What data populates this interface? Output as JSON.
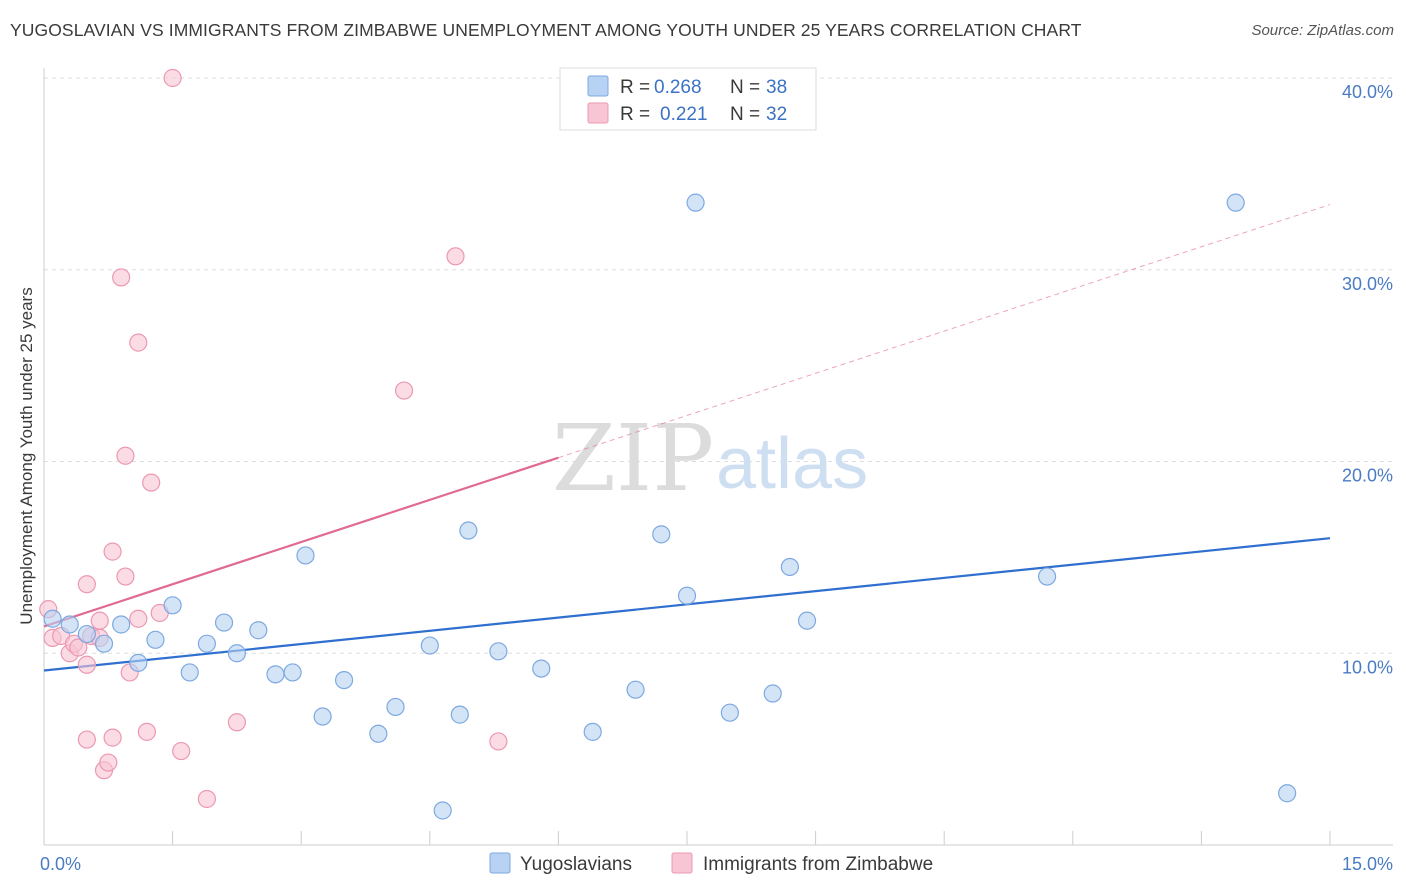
{
  "header": {
    "title": "YUGOSLAVIAN VS IMMIGRANTS FROM ZIMBABWE UNEMPLOYMENT AMONG YOUTH UNDER 25 YEARS CORRELATION CHART",
    "source": "Source: ZipAtlas.com"
  },
  "watermark": {
    "zip": "ZIP",
    "atlas": "atlas"
  },
  "colors": {
    "blue_fill": "#b7d2f2",
    "blue_stroke": "#7ea9e0",
    "blue_line": "#2f6fd0",
    "pink_fill": "#f8c5d4",
    "pink_stroke": "#ec98b2",
    "pink_line": "#e06a92",
    "tick_label": "#4a7cc4",
    "grid": "#dddddd"
  },
  "legend": {
    "rows": [
      {
        "r_label": "R =",
        "r_value": "0.268",
        "n_label": "N =",
        "n_value": "38"
      },
      {
        "r_label": "R =",
        "r_value": "0.221",
        "n_label": "N =",
        "n_value": "32"
      }
    ]
  },
  "chart_data": {
    "type": "scatter",
    "ylabel": "Unemployment Among Youth under 25 years",
    "xlim": [
      0,
      15
    ],
    "ylim": [
      0,
      40
    ],
    "x_tick_labels": [
      {
        "value": 0,
        "label": "0.0%"
      },
      {
        "value": 15,
        "label": "15.0%"
      }
    ],
    "y_tick_labels": [
      {
        "value": 10,
        "label": "10.0%"
      },
      {
        "value": 20,
        "label": "20.0%"
      },
      {
        "value": 30,
        "label": "30.0%"
      },
      {
        "value": 40,
        "label": "40.0%"
      }
    ],
    "y_gridlines": [
      10,
      20,
      30,
      40
    ],
    "legend_position": "top-center",
    "series": [
      {
        "name": "Yugoslavians",
        "color": "#b7d2f2",
        "trend": {
          "x1": 0,
          "y1": 9.1,
          "x2": 15,
          "y2": 16.0,
          "solid_until": 15
        },
        "points": [
          [
            0.1,
            11.8
          ],
          [
            0.3,
            11.5
          ],
          [
            0.5,
            11.0
          ],
          [
            0.7,
            10.5
          ],
          [
            0.9,
            11.5
          ],
          [
            1.1,
            9.5
          ],
          [
            1.3,
            10.7
          ],
          [
            1.5,
            12.5
          ],
          [
            1.7,
            9.0
          ],
          [
            1.9,
            10.5
          ],
          [
            2.1,
            11.6
          ],
          [
            2.25,
            10.0
          ],
          [
            2.5,
            11.2
          ],
          [
            2.7,
            8.9
          ],
          [
            2.9,
            9.0
          ],
          [
            3.05,
            15.1
          ],
          [
            3.25,
            6.7
          ],
          [
            3.5,
            8.6
          ],
          [
            3.9,
            5.8
          ],
          [
            4.1,
            7.2
          ],
          [
            4.5,
            10.4
          ],
          [
            4.65,
            1.8
          ],
          [
            4.85,
            6.8
          ],
          [
            4.95,
            16.4
          ],
          [
            5.3,
            10.1
          ],
          [
            5.8,
            9.2
          ],
          [
            6.4,
            5.9
          ],
          [
            6.9,
            8.1
          ],
          [
            7.2,
            16.2
          ],
          [
            7.5,
            13.0
          ],
          [
            7.6,
            33.5
          ],
          [
            8.0,
            6.9
          ],
          [
            8.5,
            7.9
          ],
          [
            8.7,
            14.5
          ],
          [
            8.9,
            11.7
          ],
          [
            11.7,
            14.0
          ],
          [
            13.9,
            33.5
          ],
          [
            14.5,
            2.7
          ]
        ]
      },
      {
        "name": "Immigrants from Zimbabwe",
        "color": "#f8c5d4",
        "trend": {
          "x1": 0,
          "y1": 11.4,
          "x2": 15,
          "y2": 33.4,
          "solid_until": 6.0
        },
        "points": [
          [
            0.05,
            12.3
          ],
          [
            0.1,
            10.8
          ],
          [
            0.2,
            10.9
          ],
          [
            0.3,
            10.0
          ],
          [
            0.35,
            10.5
          ],
          [
            0.4,
            10.3
          ],
          [
            0.5,
            13.6
          ],
          [
            0.5,
            9.4
          ],
          [
            0.5,
            5.5
          ],
          [
            0.55,
            10.9
          ],
          [
            0.65,
            11.7
          ],
          [
            0.65,
            10.8
          ],
          [
            0.7,
            3.9
          ],
          [
            0.75,
            4.3
          ],
          [
            0.8,
            15.3
          ],
          [
            0.8,
            5.6
          ],
          [
            0.9,
            29.6
          ],
          [
            0.95,
            20.3
          ],
          [
            0.95,
            14.0
          ],
          [
            1.0,
            9.0
          ],
          [
            1.1,
            26.2
          ],
          [
            1.1,
            11.8
          ],
          [
            1.2,
            5.9
          ],
          [
            1.25,
            18.9
          ],
          [
            1.35,
            12.1
          ],
          [
            1.5,
            40.0
          ],
          [
            1.6,
            4.9
          ],
          [
            1.9,
            2.4
          ],
          [
            2.25,
            6.4
          ],
          [
            4.2,
            23.7
          ],
          [
            4.8,
            30.7
          ],
          [
            5.3,
            5.4
          ]
        ]
      }
    ]
  }
}
